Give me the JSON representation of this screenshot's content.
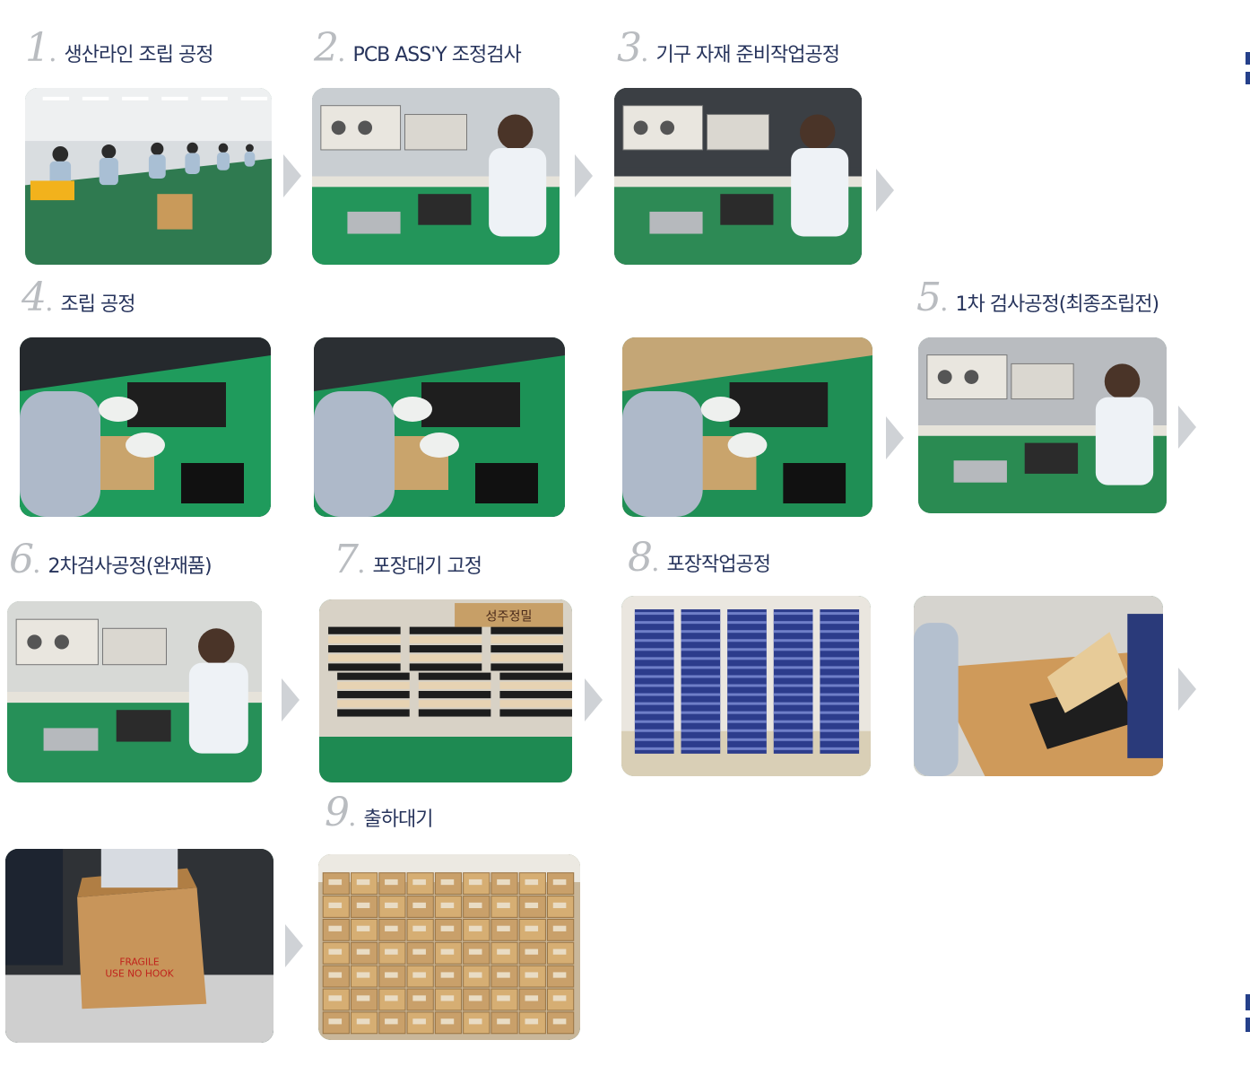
{
  "steps": [
    {
      "num": "1",
      "label": "생산라인 조립 공정"
    },
    {
      "num": "2",
      "label": "PCB ASS'Y 조정검사"
    },
    {
      "num": "3",
      "label": "기구 자재 준비작업공정"
    },
    {
      "num": "4",
      "label": "조립 공정"
    },
    {
      "num": "5",
      "label": "1차 검사공정(최종조립전)"
    },
    {
      "num": "6",
      "label": "2차검사공정(완재품)"
    },
    {
      "num": "7",
      "label": "포장대기 고정"
    },
    {
      "num": "8",
      "label": "포장작업공정"
    },
    {
      "num": "9",
      "label": "출하대기"
    }
  ],
  "photos": [
    {
      "name": "production-line-photo",
      "scene": "line",
      "bg": "#d9dde0",
      "floor": "#2f7a50"
    },
    {
      "name": "pcb-inspection-photo",
      "scene": "bench",
      "bg": "#c9ced2",
      "floor": "#23955a"
    },
    {
      "name": "parts-prep-photo",
      "scene": "bench",
      "bg": "#3b3f44",
      "floor": "#2d8a55"
    },
    {
      "name": "assembly-photo-1",
      "scene": "hands",
      "bg": "#25292d",
      "floor": "#1f9b5c"
    },
    {
      "name": "assembly-photo-2",
      "scene": "hands",
      "bg": "#2b2f33",
      "floor": "#1c9256"
    },
    {
      "name": "assembly-photo-3",
      "scene": "hands",
      "bg": "#c4a676",
      "floor": "#1f8f55"
    },
    {
      "name": "first-inspection-photo",
      "scene": "bench",
      "bg": "#b9bcc0",
      "floor": "#2a8b52"
    },
    {
      "name": "second-inspection-photo",
      "scene": "bench",
      "bg": "#d7d9d6",
      "floor": "#269058"
    },
    {
      "name": "packing-standby-photo",
      "scene": "stacks",
      "bg": "#d8d2c6",
      "floor": "#1e8a52"
    },
    {
      "name": "packing-work-photo-1",
      "scene": "boxes-blue",
      "bg": "#eae6df",
      "floor": "#d9cfb6"
    },
    {
      "name": "packing-work-photo-2",
      "scene": "desk",
      "bg": "#d6d4cf",
      "floor": "#cf9a5a"
    },
    {
      "name": "boxing-photo",
      "scene": "carton",
      "bg": "#2f3236",
      "floor": "#cfcfcf"
    },
    {
      "name": "shipping-standby-photo",
      "scene": "warehouse",
      "bg": "#c9b79a",
      "floor": "#b5894f"
    }
  ],
  "carton_print": {
    "brand": "성주정밀",
    "fragile_line1": "FRAGILE",
    "fragile_line2": "USE NO HOOK"
  }
}
